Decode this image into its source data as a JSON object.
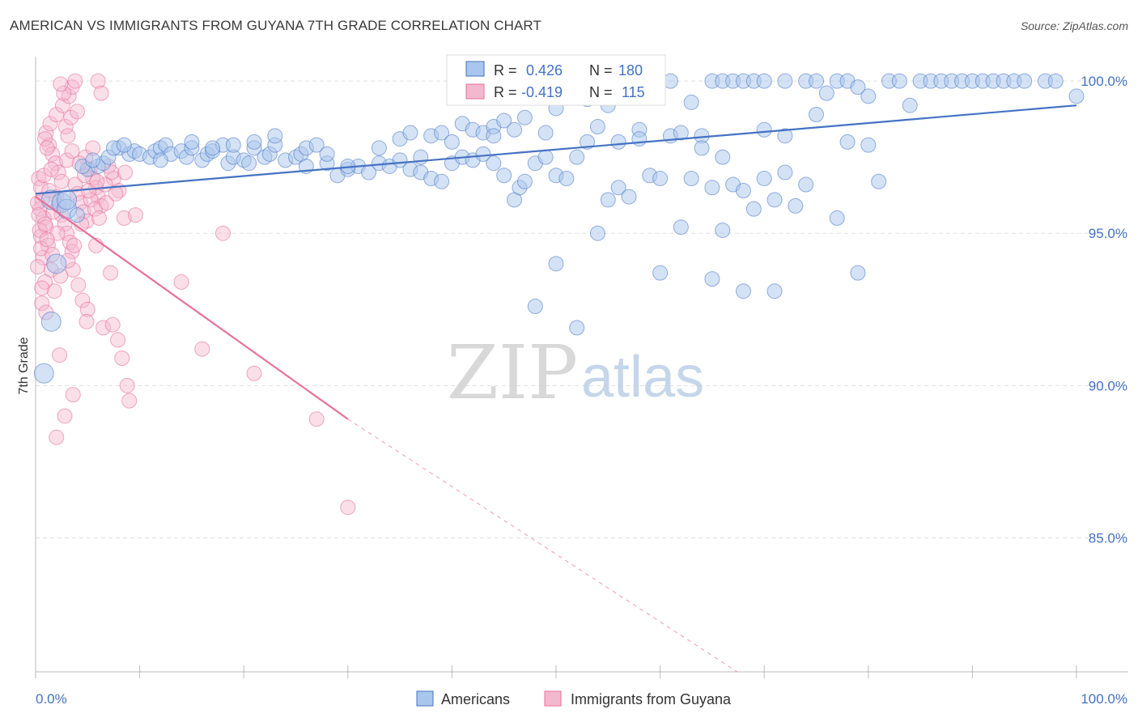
{
  "title": "AMERICAN VS IMMIGRANTS FROM GUYANA 7TH GRADE CORRELATION CHART",
  "source": "Source: ZipAtlas.com",
  "watermark": {
    "left": "ZIP",
    "right": "atlas"
  },
  "colors": {
    "blue": "#4472c4",
    "blue_fill": "#a9c6ec",
    "pink": "#e8709a",
    "pink_fill": "#f4b8ce",
    "grid": "#e0e0e0"
  },
  "legend_box": {
    "row1": {
      "r_label": "R = ",
      "r_value": "0.426",
      "n_label": "N = ",
      "n_value": "180"
    },
    "row2": {
      "r_label": "R = ",
      "r_value": "-0.419",
      "n_label": "N = ",
      "n_value": "115"
    }
  },
  "bottom_legend": {
    "s1": "Americans",
    "s2": "Immigrants from Guyana"
  },
  "chart_data": {
    "type": "scatter",
    "title": "AMERICAN VS IMMIGRANTS FROM GUYANA 7TH GRADE CORRELATION CHART",
    "xlabel": "",
    "ylabel": "7th Grade",
    "xlim": [
      0,
      100
    ],
    "ylim": [
      80.6,
      100.8
    ],
    "x_tick_labels": [
      "0.0%",
      "100.0%"
    ],
    "y_ticks": [
      85,
      90,
      95,
      100
    ],
    "y_tick_labels": [
      "85.0%",
      "90.0%",
      "95.0%",
      "100.0%"
    ],
    "grid": "horizontal dashed",
    "legend": "bottom-center",
    "series": [
      {
        "name": "Americans",
        "color": "#4472c4",
        "r": 0.426,
        "n": 180,
        "trend": {
          "x": [
            0,
            100
          ],
          "y": [
            96.3,
            99.2
          ]
        },
        "points": [
          [
            1.5,
            96.1
          ],
          [
            2.5,
            96.0
          ],
          [
            3.0,
            95.8
          ],
          [
            4.0,
            95.6
          ],
          [
            5.0,
            97.1
          ],
          [
            6.0,
            97.2
          ],
          [
            6.5,
            97.3
          ],
          [
            7.0,
            97.5
          ],
          [
            8.0,
            97.8
          ],
          [
            9.0,
            97.6
          ],
          [
            9.5,
            97.7
          ],
          [
            10,
            97.6
          ],
          [
            11,
            97.5
          ],
          [
            11.5,
            97.7
          ],
          [
            12,
            97.8
          ],
          [
            12.5,
            97.9
          ],
          [
            13,
            97.6
          ],
          [
            14,
            97.7
          ],
          [
            14.5,
            97.5
          ],
          [
            15,
            97.8
          ],
          [
            16,
            97.4
          ],
          [
            16.5,
            97.6
          ],
          [
            17,
            97.7
          ],
          [
            18,
            97.9
          ],
          [
            18.5,
            97.3
          ],
          [
            19,
            97.5
          ],
          [
            20,
            97.4
          ],
          [
            20.5,
            97.3
          ],
          [
            21,
            97.8
          ],
          [
            22,
            97.5
          ],
          [
            22.5,
            97.6
          ],
          [
            23,
            97.9
          ],
          [
            24,
            97.4
          ],
          [
            25,
            97.5
          ],
          [
            25.5,
            97.6
          ],
          [
            26,
            97.8
          ],
          [
            27,
            97.9
          ],
          [
            28,
            97.3
          ],
          [
            29,
            96.9
          ],
          [
            30,
            97.1
          ],
          [
            31,
            97.2
          ],
          [
            32,
            97.0
          ],
          [
            33,
            97.3
          ],
          [
            34,
            97.2
          ],
          [
            35,
            97.4
          ],
          [
            36,
            97.1
          ],
          [
            37,
            97.0
          ],
          [
            38,
            96.8
          ],
          [
            39,
            96.7
          ],
          [
            40,
            97.3
          ],
          [
            41,
            97.5
          ],
          [
            42,
            97.4
          ],
          [
            43,
            97.6
          ],
          [
            44,
            97.3
          ],
          [
            45,
            96.9
          ],
          [
            46,
            96.1
          ],
          [
            46.5,
            96.5
          ],
          [
            47,
            96.7
          ],
          [
            48,
            97.3
          ],
          [
            49,
            97.5
          ],
          [
            50,
            96.9
          ],
          [
            51,
            96.8
          ],
          [
            52,
            97.5
          ],
          [
            53,
            98.0
          ],
          [
            54,
            95.0
          ],
          [
            55,
            96.1
          ],
          [
            56,
            96.5
          ],
          [
            57,
            96.2
          ],
          [
            58,
            98.4
          ],
          [
            59,
            96.9
          ],
          [
            60,
            96.8
          ],
          [
            61,
            98.2
          ],
          [
            62,
            95.2
          ],
          [
            63,
            96.8
          ],
          [
            64,
            98.2
          ],
          [
            65,
            96.5
          ],
          [
            66,
            95.1
          ],
          [
            67,
            96.6
          ],
          [
            68,
            96.4
          ],
          [
            69,
            95.8
          ],
          [
            70,
            96.8
          ],
          [
            71,
            96.1
          ],
          [
            72,
            97.0
          ],
          [
            73,
            95.9
          ],
          [
            74,
            96.6
          ],
          [
            75,
            98.9
          ],
          [
            77,
            95.5
          ],
          [
            78,
            98.0
          ],
          [
            79,
            93.7
          ],
          [
            80,
            97.9
          ],
          [
            81,
            96.7
          ],
          [
            50,
            94.0
          ],
          [
            48,
            92.6
          ],
          [
            52,
            91.9
          ],
          [
            60,
            93.7
          ],
          [
            65,
            93.5
          ],
          [
            68,
            93.1
          ],
          [
            71,
            93.1
          ],
          [
            35,
            98.1
          ],
          [
            36,
            98.3
          ],
          [
            38,
            98.2
          ],
          [
            39,
            98.3
          ],
          [
            40,
            98.0
          ],
          [
            41,
            98.6
          ],
          [
            42,
            98.4
          ],
          [
            43,
            98.3
          ],
          [
            44,
            98.5
          ],
          [
            45,
            98.7
          ],
          [
            47,
            98.8
          ],
          [
            50,
            99.1
          ],
          [
            53,
            99.4
          ],
          [
            55,
            99.2
          ],
          [
            57,
            99.5
          ],
          [
            59,
            99.6
          ],
          [
            61,
            100
          ],
          [
            63,
            99.3
          ],
          [
            65,
            100
          ],
          [
            66,
            100
          ],
          [
            67,
            100
          ],
          [
            68,
            100
          ],
          [
            69,
            100
          ],
          [
            70,
            100
          ],
          [
            72,
            100
          ],
          [
            74,
            100
          ],
          [
            75,
            100
          ],
          [
            76,
            99.6
          ],
          [
            77,
            100
          ],
          [
            78,
            100
          ],
          [
            79,
            99.8
          ],
          [
            80,
            99.5
          ],
          [
            82,
            100
          ],
          [
            83,
            100
          ],
          [
            84,
            99.2
          ],
          [
            85,
            100
          ],
          [
            86,
            100
          ],
          [
            87,
            100
          ],
          [
            88,
            100
          ],
          [
            89,
            100
          ],
          [
            90,
            100
          ],
          [
            91,
            100
          ],
          [
            92,
            100
          ],
          [
            93,
            100
          ],
          [
            94,
            100
          ],
          [
            95,
            100
          ],
          [
            97,
            100
          ],
          [
            98,
            100
          ],
          [
            100,
            99.5
          ],
          [
            2.0,
            94.0
          ],
          [
            1.5,
            92.1
          ],
          [
            0.8,
            90.4
          ],
          [
            3.0,
            96.1
          ],
          [
            4.5,
            97.2
          ],
          [
            5.5,
            97.4
          ],
          [
            7.5,
            97.8
          ],
          [
            8.5,
            97.9
          ],
          [
            12,
            97.4
          ],
          [
            15,
            98.0
          ],
          [
            17,
            97.8
          ],
          [
            19,
            97.9
          ],
          [
            21,
            98.0
          ],
          [
            23,
            98.2
          ],
          [
            26,
            97.2
          ],
          [
            28,
            97.6
          ],
          [
            30,
            97.2
          ],
          [
            33,
            97.8
          ],
          [
            37,
            97.5
          ],
          [
            44,
            98.2
          ],
          [
            46,
            98.4
          ],
          [
            49,
            98.3
          ],
          [
            54,
            98.5
          ],
          [
            56,
            98.0
          ],
          [
            58,
            98.1
          ],
          [
            62,
            98.3
          ],
          [
            64,
            97.8
          ],
          [
            66,
            97.5
          ],
          [
            70,
            98.4
          ],
          [
            72,
            98.2
          ]
        ]
      },
      {
        "name": "Immigrants from Guyana",
        "color": "#e8709a",
        "r": -0.419,
        "n": 115,
        "trend": {
          "x": [
            0,
            30
          ],
          "y": [
            96.2,
            88.9
          ]
        },
        "trend_dashed": {
          "x": [
            30,
            67.4
          ],
          "y": [
            88.9,
            80.6
          ]
        },
        "points": [
          [
            0.3,
            96.8
          ],
          [
            0.5,
            96.5
          ],
          [
            0.6,
            96.1
          ],
          [
            0.4,
            95.8
          ],
          [
            0.8,
            95.5
          ],
          [
            1.0,
            95.2
          ],
          [
            0.5,
            94.9
          ],
          [
            1.2,
            94.6
          ],
          [
            0.7,
            94.2
          ],
          [
            1.5,
            93.8
          ],
          [
            0.9,
            93.4
          ],
          [
            1.8,
            93.1
          ],
          [
            0.6,
            92.7
          ],
          [
            2.0,
            96.2
          ],
          [
            2.2,
            95.9
          ],
          [
            2.5,
            95.6
          ],
          [
            2.8,
            95.3
          ],
          [
            3.0,
            95.0
          ],
          [
            3.3,
            94.7
          ],
          [
            3.5,
            94.4
          ],
          [
            3.8,
            96.6
          ],
          [
            4.0,
            96.3
          ],
          [
            4.3,
            96.0
          ],
          [
            4.6,
            95.7
          ],
          [
            4.9,
            95.4
          ],
          [
            5.2,
            97.1
          ],
          [
            5.5,
            96.8
          ],
          [
            5.8,
            96.5
          ],
          [
            6.0,
            96.2
          ],
          [
            6.3,
            95.9
          ],
          [
            1.3,
            97.9
          ],
          [
            1.6,
            97.6
          ],
          [
            1.9,
            97.3
          ],
          [
            2.2,
            97.0
          ],
          [
            2.5,
            96.7
          ],
          [
            1.0,
            98.3
          ],
          [
            1.4,
            98.6
          ],
          [
            2.0,
            98.9
          ],
          [
            2.6,
            99.2
          ],
          [
            3.2,
            99.5
          ],
          [
            3.5,
            99.8
          ],
          [
            3.8,
            100
          ],
          [
            2.7,
            99.6
          ],
          [
            2.4,
            99.9
          ],
          [
            0.9,
            98.1
          ],
          [
            1.1,
            97.8
          ],
          [
            2.9,
            98.5
          ],
          [
            3.4,
            98.8
          ],
          [
            3.1,
            98.2
          ],
          [
            4.0,
            99.0
          ],
          [
            4.8,
            97.5
          ],
          [
            5.5,
            97.8
          ],
          [
            6.0,
            100
          ],
          [
            6.3,
            99.6
          ],
          [
            7.0,
            97.2
          ],
          [
            7.5,
            96.8
          ],
          [
            8.0,
            96.4
          ],
          [
            8.5,
            95.5
          ],
          [
            3.6,
            93.8
          ],
          [
            4.1,
            93.3
          ],
          [
            4.5,
            92.8
          ],
          [
            5.0,
            92.5
          ],
          [
            5.8,
            94.6
          ],
          [
            6.5,
            91.9
          ],
          [
            7.2,
            93.7
          ],
          [
            7.4,
            92.0
          ],
          [
            7.9,
            91.5
          ],
          [
            8.3,
            90.9
          ],
          [
            8.8,
            90.0
          ],
          [
            9.0,
            89.5
          ],
          [
            9.6,
            95.6
          ],
          [
            3.6,
            89.7
          ],
          [
            4.9,
            92.1
          ],
          [
            2.8,
            89.0
          ],
          [
            2.0,
            88.3
          ],
          [
            2.3,
            91.0
          ],
          [
            14,
            93.4
          ],
          [
            16,
            91.2
          ],
          [
            18,
            95.0
          ],
          [
            21,
            90.4
          ],
          [
            27,
            88.9
          ],
          [
            30,
            86.0
          ],
          [
            0.2,
            96.0
          ],
          [
            0.3,
            95.6
          ],
          [
            0.4,
            95.1
          ],
          [
            0.5,
            94.5
          ],
          [
            0.2,
            93.9
          ],
          [
            0.6,
            93.2
          ],
          [
            1.0,
            92.4
          ],
          [
            1.3,
            96.4
          ],
          [
            1.7,
            95.7
          ],
          [
            2.1,
            95.0
          ],
          [
            0.8,
            96.9
          ],
          [
            1.5,
            97.1
          ],
          [
            3.0,
            97.4
          ],
          [
            3.5,
            97.7
          ],
          [
            4.2,
            97.3
          ],
          [
            4.7,
            96.9
          ],
          [
            5.3,
            96.1
          ],
          [
            5.7,
            95.8
          ],
          [
            6.1,
            95.5
          ],
          [
            6.7,
            96.6
          ],
          [
            7.3,
            97.0
          ],
          [
            0.9,
            95.3
          ],
          [
            1.1,
            94.8
          ],
          [
            1.6,
            94.3
          ],
          [
            2.4,
            93.6
          ],
          [
            3.1,
            94.1
          ],
          [
            3.7,
            94.6
          ],
          [
            4.4,
            95.3
          ],
          [
            5.1,
            96.4
          ],
          [
            5.9,
            96.7
          ],
          [
            6.8,
            96.0
          ],
          [
            7.7,
            96.3
          ],
          [
            8.6,
            97.0
          ]
        ]
      }
    ]
  }
}
